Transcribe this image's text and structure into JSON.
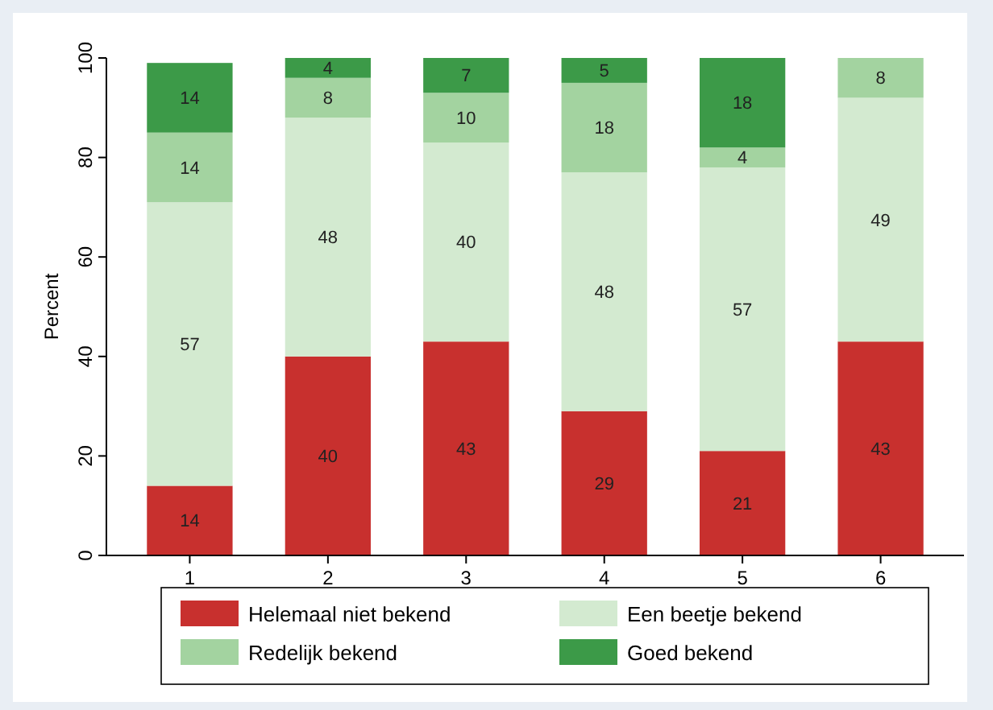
{
  "chart_data": {
    "type": "bar",
    "stacked": true,
    "ylabel": "Percent",
    "categories": [
      "1",
      "2",
      "3",
      "4",
      "5",
      "6"
    ],
    "series": [
      {
        "name": "Helemaal niet bekend",
        "color": "#c8302e",
        "values": [
          14,
          40,
          43,
          29,
          21,
          43
        ]
      },
      {
        "name": "Een beetje bekend",
        "color": "#d3ead0",
        "values": [
          57,
          48,
          40,
          48,
          57,
          49
        ]
      },
      {
        "name": "Redelijk bekend",
        "color": "#a3d3a0",
        "values": [
          14,
          8,
          10,
          18,
          4,
          8
        ]
      },
      {
        "name": "Goed bekend",
        "color": "#3c9a48",
        "values": [
          14,
          4,
          7,
          5,
          18,
          null
        ]
      }
    ],
    "ylim": [
      0,
      100
    ],
    "yticks": [
      0,
      20,
      40,
      60,
      80,
      100
    ],
    "grid": false,
    "legend": "bottom",
    "data_labels": true
  }
}
